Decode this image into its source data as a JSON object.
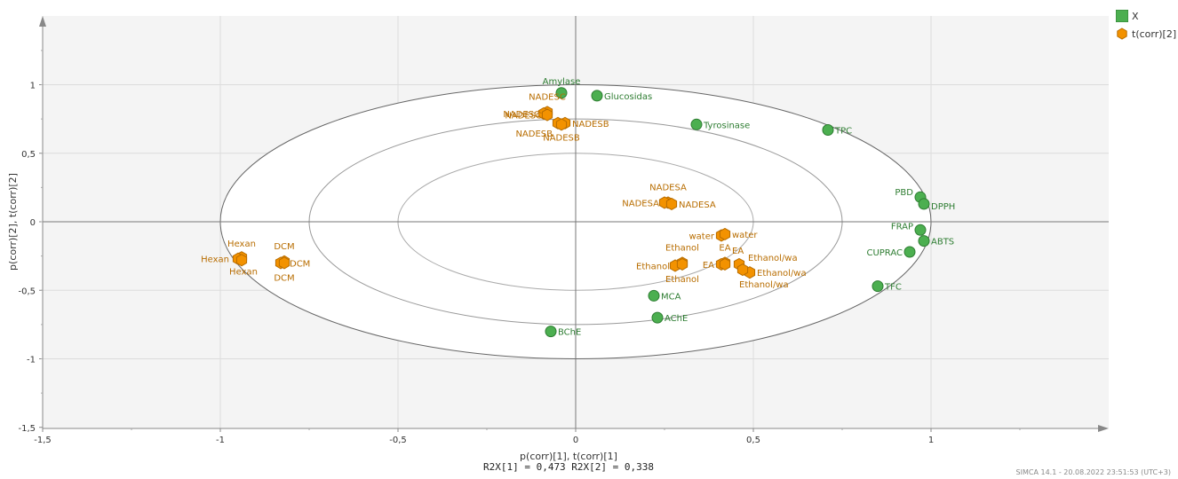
{
  "legend": {
    "items": [
      {
        "label": "X",
        "color": "#4caf50",
        "marker": "square"
      },
      {
        "label": "t(corr)[2]",
        "color": "#f39200",
        "marker": "hexagon"
      }
    ]
  },
  "xlabel": "p(corr)[1], t(corr)[1]",
  "ylabel": "p(corr)[2], t(corr)[2]",
  "r2_text": "R2X[1] = 0,473 R2X[2] = 0,338",
  "footer": "SIMCA 14.1 - 20.08.2022 23:51:53 (UTC+3)",
  "chart_data": {
    "type": "scatter",
    "xlim": [
      -1.5,
      1.5
    ],
    "ylim": [
      -1.5,
      1.5
    ],
    "xticks": [
      "-1,5",
      "-1",
      "-0,5",
      "0",
      "0,5",
      "1"
    ],
    "yticks": [
      "1",
      "0,5",
      "0",
      "-0,5",
      "-1",
      "-1,5"
    ],
    "ellipses": [
      1.0,
      0.75,
      0.5
    ],
    "series": [
      {
        "name": "X",
        "color": "#4caf50",
        "marker": "circle",
        "points": [
          {
            "label": "Amylase",
            "x": -0.04,
            "y": 0.94
          },
          {
            "label": "Glucosidas",
            "x": 0.06,
            "y": 0.92
          },
          {
            "label": "Tyrosinase",
            "x": 0.34,
            "y": 0.71
          },
          {
            "label": "TPC",
            "x": 0.71,
            "y": 0.67
          },
          {
            "label": "PBD",
            "x": 0.97,
            "y": 0.18
          },
          {
            "label": "DPPH",
            "x": 0.98,
            "y": 0.13
          },
          {
            "label": "FRAP",
            "x": 0.97,
            "y": -0.06
          },
          {
            "label": "ABTS",
            "x": 0.98,
            "y": -0.14
          },
          {
            "label": "CUPRAC",
            "x": 0.94,
            "y": -0.22
          },
          {
            "label": "TFC",
            "x": 0.85,
            "y": -0.47
          },
          {
            "label": "MCA",
            "x": 0.22,
            "y": -0.54
          },
          {
            "label": "AChE",
            "x": 0.23,
            "y": -0.7
          },
          {
            "label": "BChE",
            "x": -0.07,
            "y": -0.8
          }
        ]
      },
      {
        "name": "t(corr)[2]",
        "color": "#f39200",
        "marker": "hexagon",
        "points": [
          {
            "label": "NADESC",
            "x": -0.08,
            "y": 0.8
          },
          {
            "label": "NADESC",
            "x": -0.09,
            "y": 0.79
          },
          {
            "label": "NADESC",
            "x": -0.08,
            "y": 0.78
          },
          {
            "label": "NADESB",
            "x": -0.05,
            "y": 0.72
          },
          {
            "label": "NADESB",
            "x": -0.03,
            "y": 0.72
          },
          {
            "label": "NADESB",
            "x": -0.04,
            "y": 0.71
          },
          {
            "label": "NADESA",
            "x": 0.26,
            "y": 0.14
          },
          {
            "label": "NADESA",
            "x": 0.25,
            "y": 0.14
          },
          {
            "label": "NADESA",
            "x": 0.27,
            "y": 0.13
          },
          {
            "label": "water",
            "x": 0.41,
            "y": -0.1
          },
          {
            "label": "water",
            "x": 0.42,
            "y": -0.09
          },
          {
            "label": "Ethanol",
            "x": 0.3,
            "y": -0.3
          },
          {
            "label": "Ethanol",
            "x": 0.28,
            "y": -0.32
          },
          {
            "label": "Ethanol",
            "x": 0.3,
            "y": -0.31
          },
          {
            "label": "EA",
            "x": 0.42,
            "y": -0.3
          },
          {
            "label": "EA",
            "x": 0.41,
            "y": -0.31
          },
          {
            "label": "EA",
            "x": 0.42,
            "y": -0.31
          },
          {
            "label": "Ethanol/wa",
            "x": 0.46,
            "y": -0.31
          },
          {
            "label": "Ethanol/wa",
            "x": 0.49,
            "y": -0.37
          },
          {
            "label": "Ethanol/wa",
            "x": 0.47,
            "y": -0.35
          },
          {
            "label": "Hexan",
            "x": -0.94,
            "y": -0.26
          },
          {
            "label": "Hexan",
            "x": -0.95,
            "y": -0.27
          },
          {
            "label": "Hexan",
            "x": -0.94,
            "y": -0.28
          },
          {
            "label": "DCM",
            "x": -0.82,
            "y": -0.29
          },
          {
            "label": "DCM",
            "x": -0.83,
            "y": -0.3
          },
          {
            "label": "DCM",
            "x": -0.82,
            "y": -0.3
          }
        ]
      }
    ]
  }
}
